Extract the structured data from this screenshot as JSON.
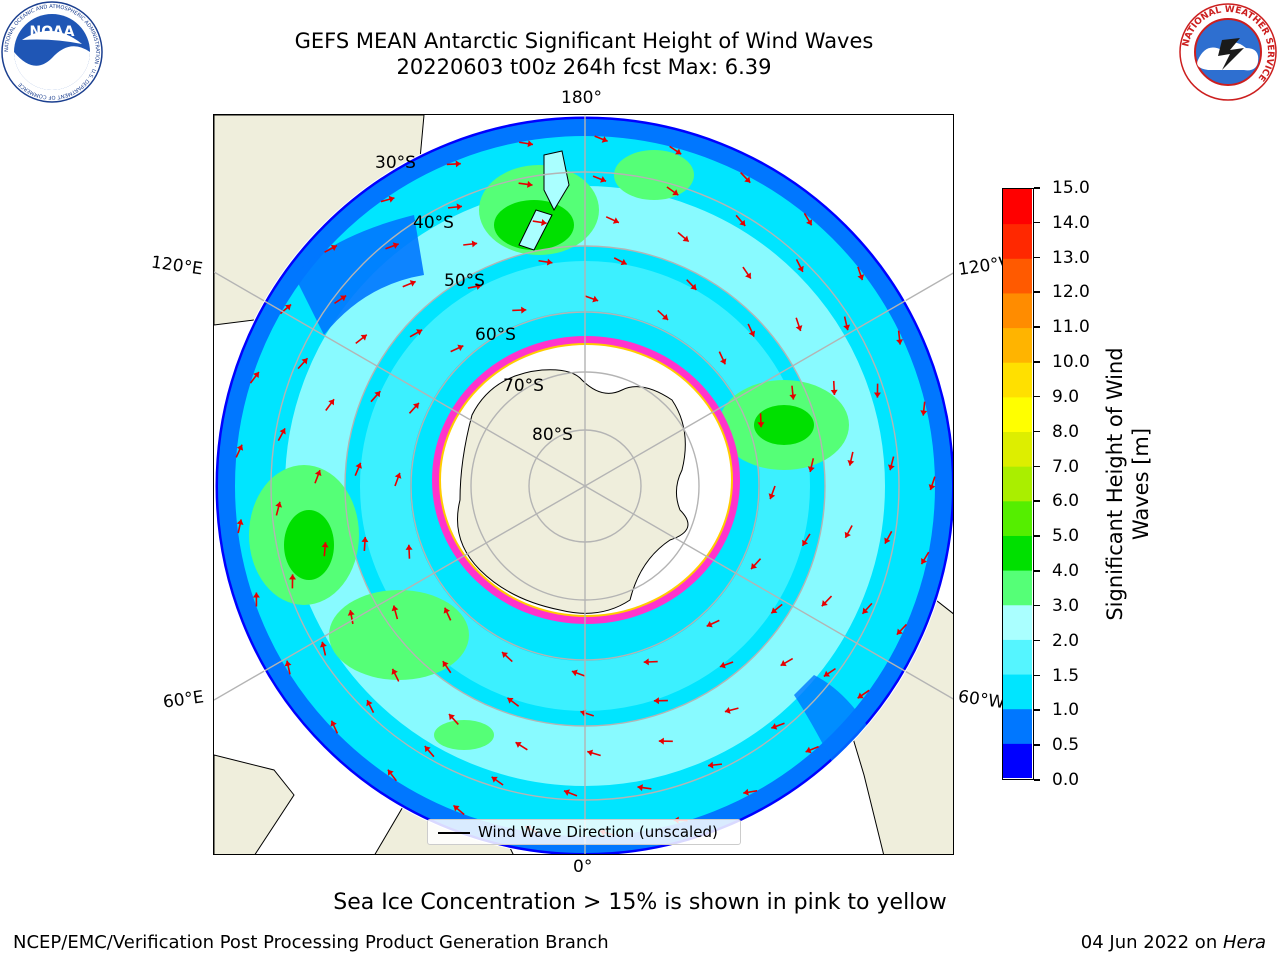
{
  "title": {
    "line1": "GEFS MEAN Antarctic Significant Height of Wind Waves",
    "line2": "20220603 t00z 264h fcst   Max: 6.39"
  },
  "logos": {
    "left": "NOAA",
    "left_ring": "NATIONAL OCEANIC AND ATMOSPHERIC ADMINISTRATION · U.S. DEPARTMENT OF COMMERCE",
    "right_ring": "NATIONAL WEATHER SERVICE"
  },
  "map": {
    "projection": "south polar stereographic",
    "longitude_labels": {
      "top": "180°",
      "bottom": "0°",
      "upper_left": "120°E",
      "lower_left": "60°E",
      "upper_right": "120°W",
      "lower_right": "60°W"
    },
    "latitude_labels": [
      "30°S",
      "40°S",
      "50°S",
      "60°S",
      "70°S",
      "80°S"
    ],
    "gridlines": true,
    "colors": {
      "land": "#efeedc",
      "ice": "#ffffff",
      "grid": "#b4b4b4",
      "arrow": "#e60000"
    }
  },
  "legend": {
    "label": "Wind Wave Direction (unscaled)"
  },
  "colorbar": {
    "label": "Significant Height of Wind Waves [m]",
    "ticks": [
      "15.0",
      "14.0",
      "13.0",
      "12.0",
      "11.0",
      "10.0",
      "9.0",
      "8.0",
      "7.0",
      "6.0",
      "5.0",
      "4.0",
      "3.0",
      "2.0",
      "1.5",
      "1.0",
      "0.5",
      "0.0"
    ],
    "colors": [
      "#0000ff",
      "#0077ff",
      "#00e5ff",
      "#55f5ff",
      "#aaffff",
      "#55ff77",
      "#00e000",
      "#55ee00",
      "#aaee00",
      "#ddee00",
      "#ffff00",
      "#ffe000",
      "#ffb400",
      "#ff8c00",
      "#ff5a00",
      "#ff2800",
      "#ff0000"
    ]
  },
  "subcaption": "Sea Ice Concentration > 15% is shown in pink to yellow",
  "footer": {
    "left": "NCEP/EMC/Verification Post Processing Product Generation Branch",
    "right_prefix": "04 Jun 2022 on ",
    "right_host": "Hera"
  }
}
